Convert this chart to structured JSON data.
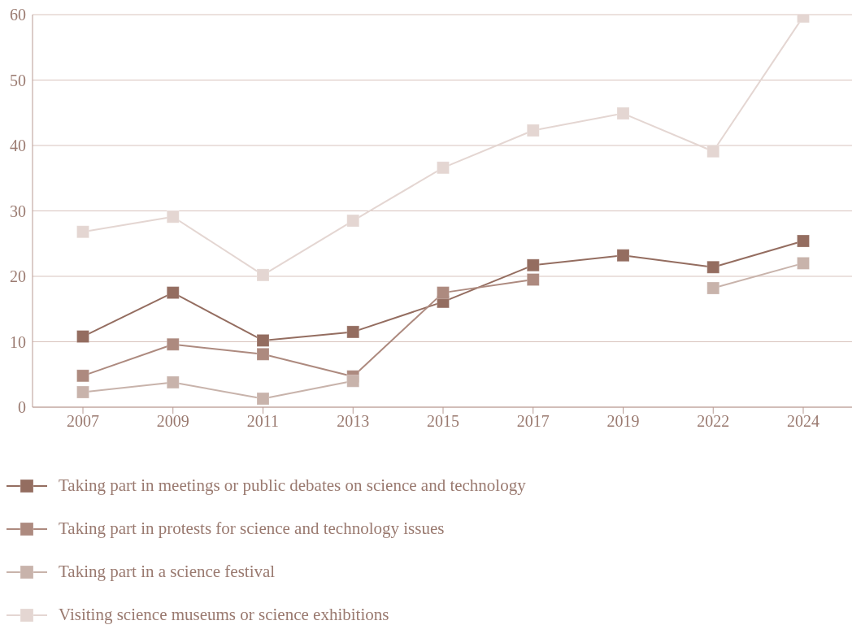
{
  "chart_data": {
    "type": "line",
    "categories": [
      "2007",
      "2009",
      "2011",
      "2013",
      "2015",
      "2017",
      "2019",
      "2022",
      "2024"
    ],
    "series": [
      {
        "name": "Taking part in meetings or public debates on science and technology",
        "color": "#946d60",
        "values": [
          10.8,
          17.5,
          10.2,
          11.5,
          16.1,
          21.7,
          23.2,
          21.4,
          25.4
        ]
      },
      {
        "name": "Taking part in protests for science and technology issues",
        "color": "#ad8a7f",
        "values": [
          4.8,
          9.6,
          8.1,
          4.7,
          17.5,
          19.5,
          null,
          null,
          null
        ]
      },
      {
        "name": "Taking part in a science festival",
        "color": "#c8b3ab",
        "values": [
          2.3,
          3.8,
          1.3,
          4.0,
          null,
          null,
          null,
          18.2,
          22.0
        ]
      },
      {
        "name": "Visiting science museums or science exhibitions",
        "color": "#e4d6d2",
        "values": [
          26.8,
          29.1,
          20.2,
          28.5,
          36.6,
          42.3,
          44.9,
          39.1,
          59.7
        ]
      }
    ],
    "ylim": [
      0,
      60
    ],
    "yticks": [
      0,
      10,
      20,
      30,
      40,
      50,
      60
    ],
    "grid": "y",
    "legend": "bottom",
    "marker": "square",
    "line_style": "solid"
  }
}
